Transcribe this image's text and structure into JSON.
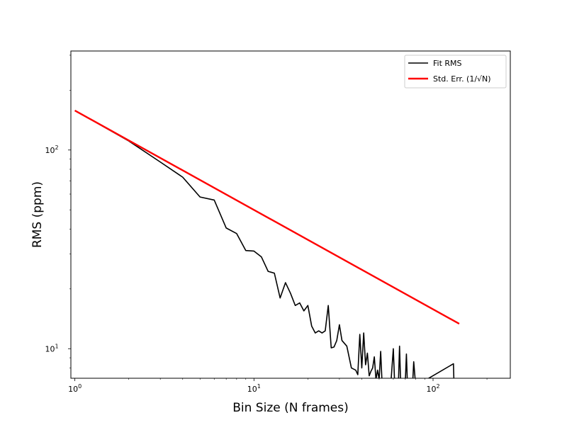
{
  "chart_data": {
    "type": "line",
    "title": "",
    "xlabel": "Bin Size (N frames)",
    "ylabel": "RMS (ppm)",
    "xscale": "log",
    "yscale": "log",
    "xlim": [
      0.95,
      270
    ],
    "ylim": [
      7.1,
      315
    ],
    "grid": false,
    "legend_position": "top-right",
    "x_ticks": [
      {
        "value": 1,
        "base": "10",
        "exp": "0"
      },
      {
        "value": 10,
        "base": "10",
        "exp": "1"
      },
      {
        "value": 100,
        "base": "10",
        "exp": "2"
      }
    ],
    "y_ticks": [
      {
        "value": 10,
        "base": "10",
        "exp": "1"
      },
      {
        "value": 100,
        "base": "10",
        "exp": "2"
      }
    ],
    "series": [
      {
        "name": "Fit RMS",
        "color": "#000000",
        "x": [
          1,
          2,
          3,
          4,
          5,
          6,
          7,
          8,
          9,
          10,
          11,
          12,
          13,
          14,
          15,
          16,
          17,
          18,
          19,
          20,
          21,
          22,
          23,
          24,
          25,
          26,
          27,
          28,
          29,
          30,
          31,
          33,
          35,
          37,
          38,
          39,
          40,
          41,
          42,
          43,
          44,
          45,
          46,
          47,
          48,
          49,
          50,
          51,
          52,
          53,
          54,
          55,
          56,
          58,
          60,
          61,
          62,
          64,
          65,
          66,
          68,
          70,
          71,
          72,
          75,
          77,
          78,
          80,
          130,
          131
        ],
        "y": [
          158,
          111,
          87,
          73,
          58,
          56,
          40.5,
          38,
          31.2,
          31,
          29,
          24.5,
          24,
          18,
          21.5,
          19,
          16.5,
          17,
          15.5,
          16.5,
          13,
          12,
          12.3,
          12,
          12.3,
          16.5,
          10.1,
          10.2,
          11,
          13.2,
          11,
          10.3,
          8,
          7.8,
          7.4,
          11.8,
          8,
          12,
          8.3,
          9.5,
          7.3,
          7.7,
          8,
          9.1,
          7,
          7.8,
          7,
          9.7,
          6.5,
          7,
          6.5,
          7,
          6.8,
          6.5,
          10,
          6.8,
          6.5,
          6.5,
          10.3,
          6.5,
          6.5,
          6.8,
          9.4,
          6.5,
          6.5,
          6.8,
          8.6,
          6.5,
          8.4,
          6.5
        ]
      },
      {
        "name": "Std. Err. (1/√N)",
        "color": "#ff0000",
        "x": [
          1,
          140
        ],
        "y": [
          158,
          13.35
        ]
      }
    ]
  }
}
